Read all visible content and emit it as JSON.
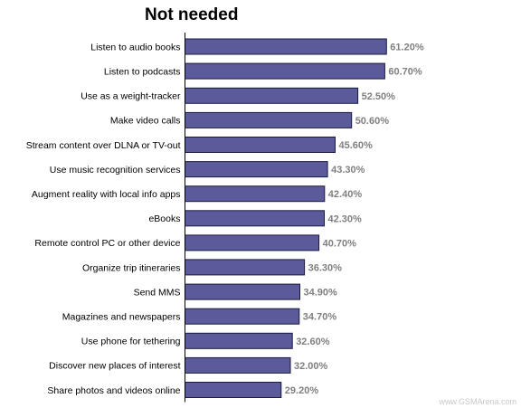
{
  "chart_data": {
    "type": "bar",
    "orientation": "horizontal",
    "title": "Not needed",
    "categories": [
      "Listen to audio books",
      "Listen to podcasts",
      "Use as a weight-tracker",
      "Make video calls",
      "Stream content over DLNA or TV-out",
      "Use music recognition services",
      "Augment reality with local info apps",
      "eBooks",
      "Remote control PC or other device",
      "Organize trip itineraries",
      "Send MMS",
      "Magazines and newspapers",
      "Use phone for tethering",
      "Discover new places of interest",
      "Share photos and videos online"
    ],
    "values": [
      61.2,
      60.7,
      52.5,
      50.6,
      45.6,
      43.3,
      42.4,
      42.3,
      40.7,
      36.3,
      34.9,
      34.7,
      32.6,
      32.0,
      29.2
    ],
    "value_labels": [
      "61.20%",
      "60.70%",
      "52.50%",
      "50.60%",
      "45.60%",
      "43.30%",
      "42.40%",
      "42.30%",
      "40.70%",
      "36.30%",
      "34.90%",
      "34.70%",
      "32.60%",
      "32.00%",
      "29.20%"
    ],
    "xlim": [
      0,
      100
    ],
    "grid": false,
    "legend": "none",
    "bar_color": "#5b5b9b",
    "bar_edge_color": "#1a1a40"
  },
  "watermark": "www.GSMArena.com"
}
